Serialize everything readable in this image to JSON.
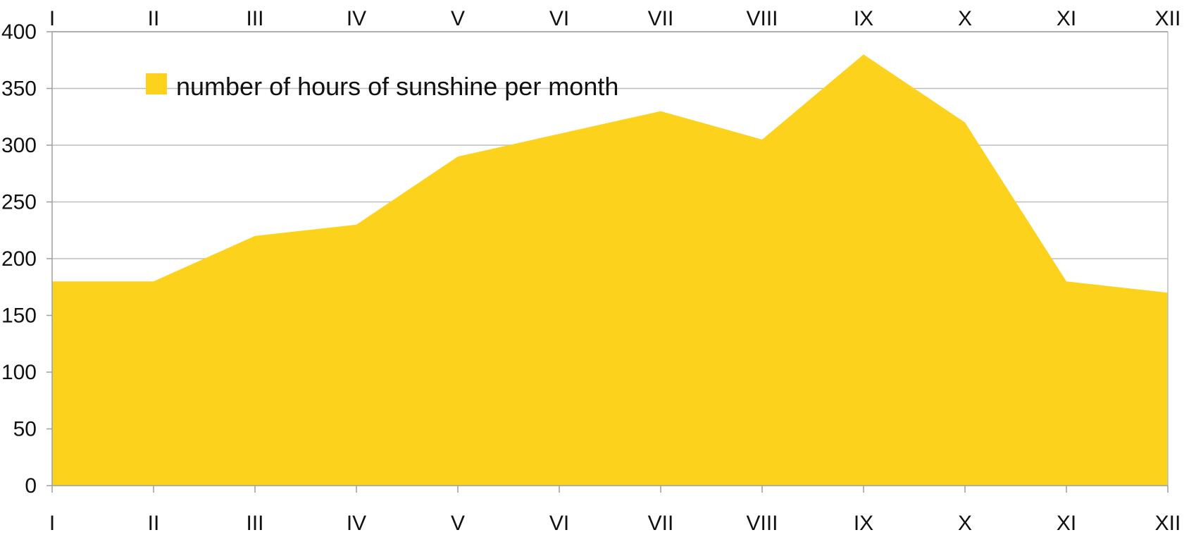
{
  "chart_data": {
    "type": "area",
    "categories": [
      "I",
      "II",
      "III",
      "IV",
      "V",
      "VI",
      "VII",
      "VIII",
      "IX",
      "X",
      "XI",
      "XII"
    ],
    "series": [
      {
        "name": "number of hours of sunshine per month",
        "values": [
          180,
          180,
          220,
          230,
          290,
          310,
          330,
          305,
          380,
          320,
          180,
          170
        ],
        "color": "#FDD21C"
      }
    ],
    "title": "",
    "xlabel": "",
    "ylabel": "",
    "ylim": [
      0,
      400
    ],
    "yticks": [
      0,
      50,
      100,
      150,
      200,
      250,
      300,
      350,
      400
    ],
    "grid": true,
    "legend": "top-left",
    "x_tick_labels_top": true,
    "x_tick_labels_bottom": true
  }
}
